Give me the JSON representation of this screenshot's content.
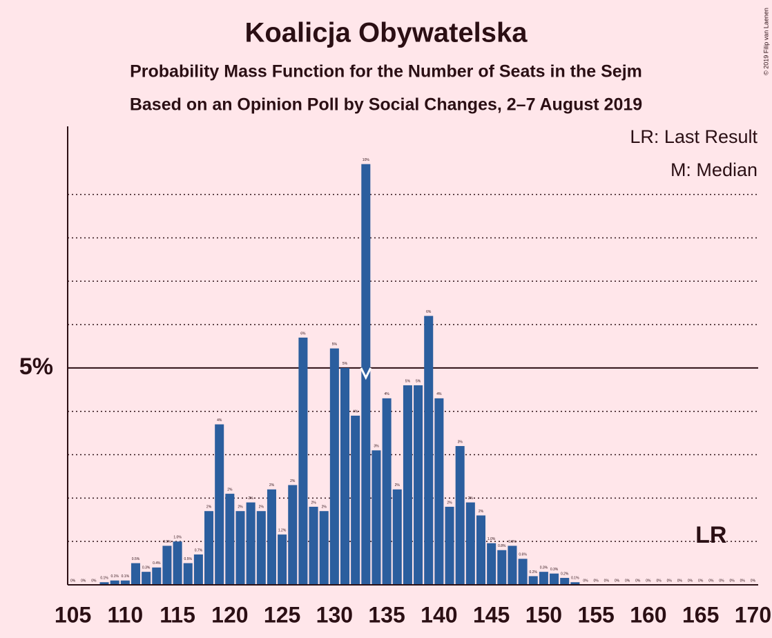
{
  "chart_data": {
    "type": "bar",
    "title": "Koalicja Obywatelska",
    "subtitle": "Probability Mass Function for the Number of Seats in the Sejm",
    "subtitle2": "Based on an Opinion Poll by Social Changes, 2–7 August 2019",
    "copyright": "© 2019 Filip van Laenen",
    "legend": [
      "LR: Last Result",
      "M: Median"
    ],
    "x": [
      105,
      106,
      107,
      108,
      109,
      110,
      111,
      112,
      113,
      114,
      115,
      116,
      117,
      118,
      119,
      120,
      121,
      122,
      123,
      124,
      125,
      126,
      127,
      128,
      129,
      130,
      131,
      132,
      133,
      134,
      135,
      136,
      137,
      138,
      139,
      140,
      141,
      142,
      143,
      144,
      145,
      146,
      147,
      148,
      149,
      150,
      151,
      152,
      153,
      154,
      155,
      156,
      157,
      158,
      159,
      160,
      161,
      162,
      163,
      164,
      165,
      166,
      167,
      168,
      169,
      170
    ],
    "values": [
      0,
      0,
      0,
      0.06,
      0.1,
      0.1,
      0.5,
      0.3,
      0.4,
      0.9,
      1.0,
      0.5,
      0.7,
      1.7,
      3.7,
      2.1,
      1.7,
      1.9,
      1.7,
      2.2,
      1.16,
      2.3,
      5.7,
      1.8,
      1.7,
      5.45,
      5.0,
      3.9,
      9.7,
      3.1,
      4.3,
      2.2,
      4.6,
      4.6,
      6.2,
      4.3,
      1.8,
      3.2,
      1.9,
      1.6,
      0.96,
      0.8,
      0.9,
      0.6,
      0.2,
      0.3,
      0.26,
      0.16,
      0.06,
      0,
      0,
      0,
      0,
      0,
      0,
      0,
      0,
      0,
      0,
      0,
      0,
      0,
      0,
      0,
      0,
      0
    ],
    "value_labels": [
      "0%",
      "0%",
      "0%",
      "0.1%",
      "0.1%",
      "0.1%",
      "0.5%",
      "0.3%",
      "0.4%",
      "0.9%",
      "1.0%",
      "0.5%",
      "0.7%",
      "2%",
      "4%",
      "2%",
      "2%",
      "2%",
      "2%",
      "2%",
      "1.2%",
      "2%",
      "6%",
      "2%",
      "2%",
      "5%",
      "5%",
      "4%",
      "10%",
      "3%",
      "4%",
      "2%",
      "5%",
      "5%",
      "6%",
      "4%",
      "2%",
      "3%",
      "2%",
      "2%",
      "1.0%",
      "0.8%",
      "0.9%",
      "0.6%",
      "0.2%",
      "0.3%",
      "0.3%",
      "0.2%",
      "0.1%",
      "0%",
      "0%",
      "0%",
      "0%",
      "0%",
      "0%",
      "0%",
      "0%",
      "0%",
      "0%",
      "0%",
      "0%",
      "0%",
      "0%",
      "0%",
      "0%",
      "0%"
    ],
    "color": "#2b5e9e",
    "xlim": [
      104.5,
      170.5
    ],
    "xticks": [
      105,
      110,
      115,
      120,
      125,
      130,
      135,
      140,
      145,
      150,
      155,
      160,
      165,
      170
    ],
    "ylim": [
      0,
      10.57
    ],
    "yticks": [
      {
        "value": 5,
        "label": "5%"
      }
    ],
    "grid_lines": [
      1,
      2,
      3,
      4,
      6,
      7,
      8,
      9
    ],
    "median": 133,
    "last_result": 166,
    "last_result_label": "LR"
  }
}
